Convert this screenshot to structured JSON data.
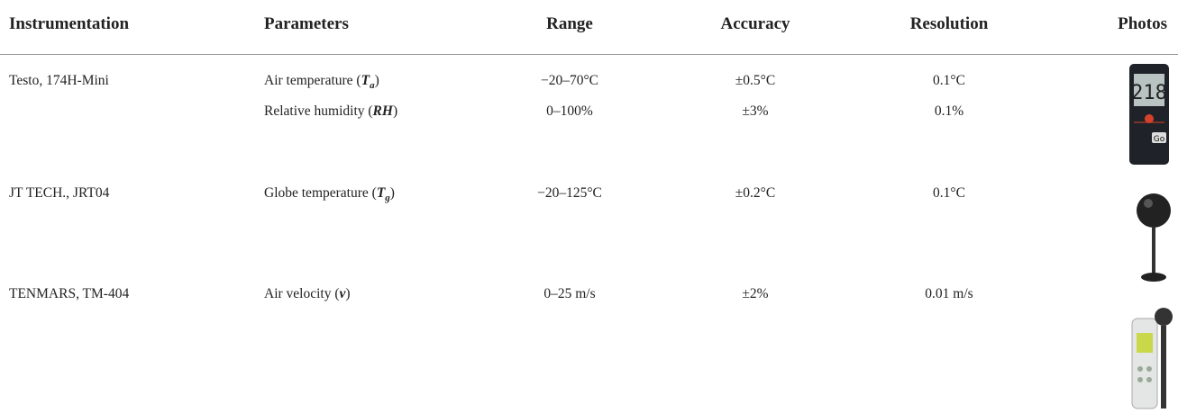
{
  "table": {
    "header": [
      "Instrumentation",
      "Parameters",
      "Range",
      "Accuracy",
      "Resolution",
      "Photos"
    ],
    "rows": [
      {
        "instrument": "Testo, 174H-Mini",
        "parameters": [
          {
            "before": "Air temperature (",
            "symbol": "T",
            "subscript": "a",
            "after": ")",
            "range": "−20–70°C",
            "accuracy": "±0.5°C",
            "resolution": "0.1°C"
          },
          {
            "before": "Relative humidity (",
            "symbol": "RH",
            "after": ")",
            "range": "0–100%",
            "accuracy": "±3%",
            "resolution": "0.1%"
          }
        ]
      },
      {
        "instrument": "JT TECH., JRT04",
        "parameters": [
          {
            "before": "Globe temperature (",
            "symbol": "T",
            "subscript": "g",
            "after": ")",
            "range": "−20–125°C",
            "accuracy": "±0.2°C",
            "resolution": "0.1°C"
          }
        ]
      },
      {
        "instrument": "TENMARS, TM-404",
        "parameters": [
          {
            "before": "Air velocity (",
            "symbol": "v",
            "after": ")",
            "range": "0–25 m/s",
            "accuracy": "±2%",
            "resolution": "0.01 m/s"
          }
        ]
      }
    ]
  }
}
